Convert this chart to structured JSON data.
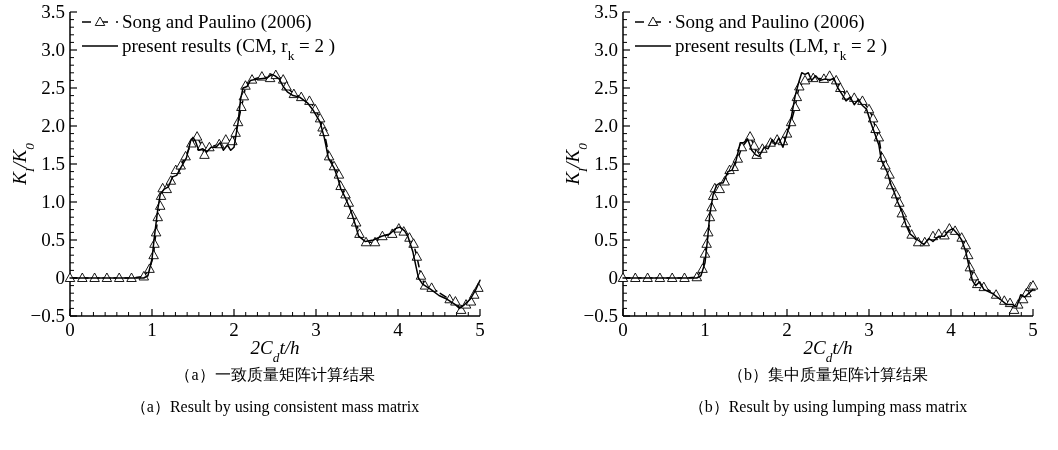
{
  "chart_data": [
    {
      "type": "line",
      "xlabel": "2C$_{d}$t/h",
      "ylabel": "K$_{I}$/K$_{0}$",
      "xlim": [
        0,
        5
      ],
      "xticks": [
        0,
        1,
        2,
        3,
        4,
        5
      ],
      "ylim": [
        -0.5,
        3.5
      ],
      "yticks": [
        {
          "value": -0.5,
          "label": "−0.5"
        },
        0,
        {
          "value": 0.5,
          "label": "0.5"
        },
        {
          "value": 1,
          "label": "1.0"
        },
        {
          "value": 1.5,
          "label": "1.5"
        },
        {
          "value": 2,
          "label": "2.0"
        },
        {
          "value": 2.5,
          "label": "2.5"
        },
        {
          "value": 3,
          "label": "3.0"
        },
        {
          "value": 3.5,
          "label": "3.5"
        }
      ],
      "legend": "top left",
      "grid": false,
      "annotations": [
        "（a）一致质量矩阵计算结果",
        "（a）Result by using consistent mass matrix"
      ],
      "series": [
        {
          "name": "Song and Paulino (2006)",
          "color": "#000000",
          "marker": "triangle",
          "line_style": "dashed",
          "x": [
            0,
            0.15,
            0.3,
            0.45,
            0.6,
            0.75,
            0.9,
            0.97,
            1.02,
            1.03,
            1.05,
            1.07,
            1.1,
            1.11,
            1.13,
            1.18,
            1.23,
            1.29,
            1.35,
            1.41,
            1.48,
            1.55,
            1.61,
            1.64,
            1.7,
            1.82,
            1.9,
            1.98,
            2.02,
            2.05,
            2.09,
            2.12,
            2.14,
            2.22,
            2.34,
            2.44,
            2.51,
            2.6,
            2.64,
            2.73,
            2.82,
            2.92,
            2.99,
            3.05,
            3.08,
            3.1,
            3.16,
            3.22,
            3.28,
            3.3,
            3.36,
            3.4,
            3.44,
            3.49,
            3.53,
            3.61,
            3.72,
            3.81,
            3.93,
            4.01,
            4.07,
            4.14,
            4.19,
            4.23,
            4.28,
            4.33,
            4.41,
            4.63,
            4.7,
            4.77,
            4.83,
            4.89,
            4.93,
            4.98
          ],
          "values": [
            0,
            0,
            0,
            0,
            0,
            0,
            0.02,
            0.12,
            0.3,
            0.45,
            0.6,
            0.8,
            0.95,
            1.08,
            1.18,
            1.17,
            1.28,
            1.42,
            1.48,
            1.6,
            1.77,
            1.86,
            1.73,
            1.62,
            1.72,
            1.76,
            1.82,
            1.8,
            1.91,
            2.05,
            2.25,
            2.39,
            2.53,
            2.61,
            2.65,
            2.63,
            2.67,
            2.61,
            2.52,
            2.42,
            2.38,
            2.33,
            2.22,
            2.1,
            1.98,
            1.92,
            1.6,
            1.47,
            1.36,
            1.21,
            1.1,
            0.99,
            0.83,
            0.73,
            0.58,
            0.47,
            0.47,
            0.55,
            0.58,
            0.65,
            0.61,
            0.53,
            0.45,
            0.28,
            0.03,
            -0.1,
            -0.13,
            -0.28,
            -0.31,
            -0.42,
            -0.35,
            -0.31,
            -0.22,
            -0.13
          ]
        },
        {
          "name": "present results (CM, r$_{k}$ = 2 )",
          "color": "#000000",
          "marker": "none",
          "line_style": "solid",
          "x": [
            0,
            0.9,
            0.95,
            1.0,
            1.03,
            1.07,
            1.1,
            1.15,
            1.2,
            1.25,
            1.3,
            1.35,
            1.42,
            1.47,
            1.5,
            1.53,
            1.57,
            1.62,
            1.67,
            1.72,
            1.78,
            1.83,
            1.87,
            1.92,
            1.96,
            2.0,
            2.05,
            2.08,
            2.11,
            2.16,
            2.2,
            2.3,
            2.4,
            2.46,
            2.5,
            2.55,
            2.6,
            2.65,
            2.72,
            2.8,
            2.9,
            2.97,
            3.05,
            3.1,
            3.12,
            3.15,
            3.22,
            3.27,
            3.3,
            3.36,
            3.42,
            3.48,
            3.52,
            3.6,
            3.7,
            3.8,
            3.9,
            3.97,
            4.02,
            4.08,
            4.12,
            4.18,
            4.22,
            4.25,
            4.3,
            4.4,
            4.5,
            4.6,
            4.7,
            4.75,
            4.8,
            4.88,
            4.95,
            5.0
          ],
          "values": [
            0,
            0,
            0.03,
            0.25,
            0.55,
            0.9,
            1.1,
            1.17,
            1.2,
            1.33,
            1.35,
            1.45,
            1.58,
            1.8,
            1.85,
            1.8,
            1.68,
            1.7,
            1.66,
            1.72,
            1.72,
            1.78,
            1.68,
            1.75,
            1.68,
            1.72,
            2.05,
            2.35,
            2.5,
            2.52,
            2.6,
            2.62,
            2.63,
            2.68,
            2.66,
            2.62,
            2.52,
            2.45,
            2.4,
            2.38,
            2.3,
            2.2,
            2.05,
            1.85,
            1.75,
            1.58,
            1.45,
            1.3,
            1.18,
            1.05,
            0.9,
            0.7,
            0.55,
            0.48,
            0.5,
            0.55,
            0.58,
            0.65,
            0.67,
            0.62,
            0.55,
            0.35,
            0.15,
            0.0,
            -0.08,
            -0.15,
            -0.23,
            -0.28,
            -0.35,
            -0.4,
            -0.36,
            -0.28,
            -0.15,
            -0.03
          ]
        }
      ]
    },
    {
      "type": "line",
      "xlabel": "2C$_{d}$t/h",
      "ylabel": "K$_{I}$/K$_{0}$",
      "xlim": [
        0,
        5
      ],
      "xticks": [
        0,
        1,
        2,
        3,
        4,
        5
      ],
      "ylim": [
        -0.5,
        3.5
      ],
      "yticks": [
        {
          "value": -0.5,
          "label": "−0.5"
        },
        0,
        {
          "value": 0.5,
          "label": "0.5"
        },
        {
          "value": 1,
          "label": "1.0"
        },
        {
          "value": 1.5,
          "label": "1.5"
        },
        {
          "value": 2,
          "label": "2.0"
        },
        {
          "value": 2.5,
          "label": "2.5"
        },
        {
          "value": 3,
          "label": "3.0"
        },
        {
          "value": 3.5,
          "label": "3.5"
        }
      ],
      "legend": "top left",
      "grid": false,
      "annotations": [
        "（b）集中质量矩阵计算结果",
        "（b）Result by using lumping mass matrix"
      ],
      "series": [
        {
          "name": "Song and Paulino (2006)",
          "color": "#000000",
          "marker": "triangle",
          "line_style": "dashed",
          "x": [
            0,
            0.15,
            0.3,
            0.45,
            0.6,
            0.75,
            0.9,
            0.97,
            1.0,
            1.02,
            1.04,
            1.06,
            1.08,
            1.1,
            1.12,
            1.18,
            1.24,
            1.3,
            1.35,
            1.4,
            1.45,
            1.55,
            1.6,
            1.63,
            1.7,
            1.8,
            1.88,
            1.95,
            2.0,
            2.05,
            2.1,
            2.12,
            2.15,
            2.22,
            2.32,
            2.45,
            2.52,
            2.6,
            2.65,
            2.73,
            2.82,
            2.92,
            3.0,
            3.05,
            3.08,
            3.12,
            3.16,
            3.2,
            3.25,
            3.27,
            3.33,
            3.37,
            3.4,
            3.45,
            3.52,
            3.6,
            3.68,
            3.78,
            3.85,
            3.92,
            3.98,
            4.05,
            4.13,
            4.18,
            4.21,
            4.23,
            4.28,
            4.32,
            4.4,
            4.55,
            4.65,
            4.72,
            4.77,
            4.82,
            4.88,
            4.92,
            4.97,
            5.0
          ],
          "values": [
            0,
            0,
            0,
            0,
            0,
            0,
            0.01,
            0.12,
            0.32,
            0.45,
            0.6,
            0.8,
            0.93,
            1.08,
            1.18,
            1.17,
            1.27,
            1.42,
            1.46,
            1.57,
            1.72,
            1.86,
            1.74,
            1.62,
            1.7,
            1.78,
            1.82,
            1.8,
            1.9,
            2.05,
            2.25,
            2.38,
            2.52,
            2.6,
            2.63,
            2.62,
            2.66,
            2.6,
            2.5,
            2.4,
            2.37,
            2.33,
            2.22,
            2.1,
            1.96,
            1.85,
            1.58,
            1.48,
            1.36,
            1.22,
            1.1,
            0.99,
            0.85,
            0.72,
            0.57,
            0.47,
            0.47,
            0.55,
            0.58,
            0.56,
            0.65,
            0.62,
            0.53,
            0.43,
            0.3,
            0.14,
            0.02,
            -0.08,
            -0.12,
            -0.22,
            -0.3,
            -0.33,
            -0.42,
            -0.35,
            -0.28,
            -0.2,
            -0.12,
            -0.1
          ]
        },
        {
          "name": "present results (LM, r$_{k}$ = 2 )",
          "color": "#000000",
          "marker": "none",
          "line_style": "solid",
          "x": [
            0,
            0.9,
            0.95,
            1.0,
            1.03,
            1.06,
            1.1,
            1.14,
            1.18,
            1.22,
            1.28,
            1.33,
            1.38,
            1.43,
            1.47,
            1.52,
            1.57,
            1.62,
            1.66,
            1.72,
            1.77,
            1.82,
            1.86,
            1.9,
            1.95,
            2.0,
            2.05,
            2.1,
            2.15,
            2.18,
            2.22,
            2.26,
            2.3,
            2.35,
            2.4,
            2.47,
            2.52,
            2.57,
            2.62,
            2.67,
            2.72,
            2.77,
            2.82,
            2.87,
            2.92,
            2.97,
            3.02,
            3.07,
            3.12,
            3.15,
            3.22,
            3.27,
            3.3,
            3.35,
            3.4,
            3.45,
            3.5,
            3.57,
            3.62,
            3.67,
            3.73,
            3.78,
            3.85,
            3.92,
            3.97,
            4.02,
            4.08,
            4.13,
            4.18,
            4.22,
            4.26,
            4.3,
            4.35,
            4.4,
            4.5,
            4.6,
            4.68,
            4.75,
            4.8,
            4.85,
            4.9,
            5.0
          ],
          "values": [
            0,
            0,
            0.03,
            0.2,
            0.5,
            0.85,
            1.1,
            1.22,
            1.25,
            1.25,
            1.4,
            1.42,
            1.55,
            1.78,
            1.78,
            1.83,
            1.68,
            1.62,
            1.6,
            1.72,
            1.7,
            1.82,
            1.76,
            1.84,
            1.72,
            1.9,
            2.1,
            2.4,
            2.6,
            2.7,
            2.68,
            2.7,
            2.6,
            2.66,
            2.6,
            2.62,
            2.6,
            2.63,
            2.5,
            2.42,
            2.33,
            2.38,
            2.28,
            2.35,
            2.27,
            2.22,
            2.05,
            1.9,
            1.75,
            1.55,
            1.4,
            1.22,
            1.15,
            1.0,
            0.88,
            0.7,
            0.58,
            0.52,
            0.48,
            0.44,
            0.52,
            0.48,
            0.55,
            0.55,
            0.62,
            0.65,
            0.58,
            0.5,
            0.35,
            0.15,
            -0.03,
            -0.1,
            -0.05,
            -0.15,
            -0.2,
            -0.28,
            -0.35,
            -0.35,
            -0.38,
            -0.22,
            -0.25,
            -0.15
          ]
        }
      ]
    }
  ]
}
